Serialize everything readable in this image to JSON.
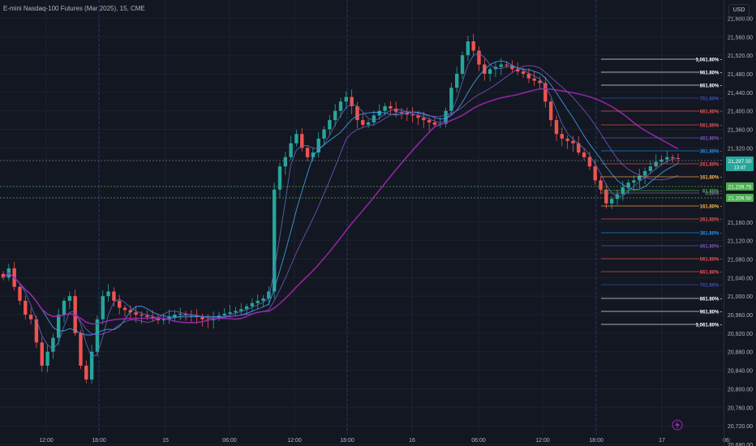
{
  "header": {
    "title": "E-mini Nasdaq-100 Futures (Mar 2025), 15, CME"
  },
  "currency_button": "USD",
  "colors": {
    "up": "#26a69a",
    "down": "#ef5350",
    "bg": "#131722",
    "grid": "#1e222d",
    "text": "#b2b5be",
    "ma_purple": "#7e57c2",
    "ma_blue": "#2962ff"
  },
  "price_axis": {
    "labels": [
      "21,600.00",
      "21,560.00",
      "21,520.00",
      "21,480.00",
      "21,440.00",
      "21,400.00",
      "21,360.00",
      "21,320.00",
      "21,160.00",
      "21,120.00",
      "21,080.00",
      "21,040.00",
      "21,000.00",
      "20,960.00",
      "20,920.00",
      "20,880.00",
      "20,840.00",
      "20,800.00",
      "20,760.00",
      "20,720.00",
      "20,680.00"
    ],
    "current_price": "21,297.50",
    "countdown": "13:47",
    "level_upper": "21,239.75",
    "level_lower": "21,209.50"
  },
  "time_axis": {
    "labels": [
      "12:00",
      "18:00",
      "15",
      "06:00",
      "12:00",
      "18:00",
      "16",
      "06:00",
      "12:00",
      "18:00",
      "17",
      "06:"
    ]
  },
  "fib_levels": [
    {
      "label": "1,061.80% -",
      "color": "#ffffff"
    },
    {
      "label": "961.80% -",
      "color": "#ffffff"
    },
    {
      "label": "861.80% -",
      "color": "#ffffff"
    },
    {
      "label": "761.80% -",
      "color": "#3f51b5"
    },
    {
      "label": "661.80% -",
      "color": "#ef5350"
    },
    {
      "label": "561.80% -",
      "color": "#ef5350"
    },
    {
      "label": "461.80% -",
      "color": "#7e57c2"
    },
    {
      "label": "361.80% -",
      "color": "#2196f3"
    },
    {
      "label": "261.80% -",
      "color": "#ef5350"
    },
    {
      "label": "161.80% -",
      "color": "#ffb74d"
    },
    {
      "label": "61.80% -",
      "color": "#4caf50"
    },
    {
      "label": "0.00% -",
      "color": "#787b86"
    },
    {
      "label": "161.80% -",
      "color": "#ffb74d"
    },
    {
      "label": "261.80% -",
      "color": "#ef5350"
    },
    {
      "label": "361.80% -",
      "color": "#2196f3"
    },
    {
      "label": "461.80% -",
      "color": "#7e57c2"
    },
    {
      "label": "561.80% -",
      "color": "#ef5350"
    },
    {
      "label": "661.80% -",
      "color": "#ef5350"
    },
    {
      "label": "761.80% -",
      "color": "#3f51b5"
    },
    {
      "label": "861.80% -",
      "color": "#ffffff"
    },
    {
      "label": "961.80% -",
      "color": "#ffffff"
    },
    {
      "label": "1,061.80% -",
      "color": "#ffffff"
    }
  ],
  "chart_data": {
    "type": "candlestick",
    "price_range": [
      20680,
      21620
    ],
    "close_path": [
      21040,
      21060,
      21020,
      20990,
      20960,
      20950,
      20900,
      20850,
      20880,
      20910,
      20960,
      20990,
      21000,
      20920,
      20850,
      20820,
      20880,
      20950,
      21000,
      21010,
      20990,
      20975,
      20970,
      20965,
      20960,
      20958,
      20955,
      20952,
      20948,
      20950,
      20955,
      20960,
      20962,
      20960,
      20958,
      20955,
      20950,
      20948,
      20952,
      20958,
      20962,
      20965,
      20968,
      20972,
      20978,
      20985,
      20990,
      20995,
      21010,
      21230,
      21280,
      21300,
      21330,
      21350,
      21320,
      21300,
      21310,
      21340,
      21360,
      21380,
      21400,
      21420,
      21430,
      21410,
      21380,
      21370,
      21375,
      21390,
      21400,
      21410,
      21405,
      21398,
      21395,
      21392,
      21390,
      21385,
      21380,
      21375,
      21370,
      21372,
      21400,
      21450,
      21480,
      21520,
      21550,
      21530,
      21500,
      21480,
      21490,
      21495,
      21500,
      21498,
      21490,
      21485,
      21480,
      21470,
      21465,
      21460,
      21420,
      21380,
      21350,
      21340,
      21335,
      21330,
      21310,
      21300,
      21280,
      21250,
      21230,
      21200,
      21210,
      21220,
      21235,
      21245,
      21250,
      21260,
      21270,
      21280,
      21290,
      21295,
      21300,
      21298,
      21297.5
    ]
  }
}
